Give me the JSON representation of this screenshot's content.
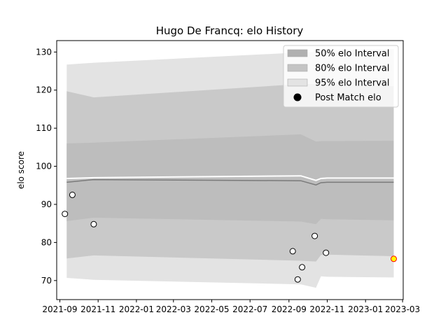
{
  "chart_data": {
    "type": "area",
    "title": "Hugo De Francq: elo History",
    "xlabel": "",
    "ylabel": "elo score",
    "ylim": [
      65,
      133
    ],
    "xlim": [
      "2021-08-27",
      "2023-03-02"
    ],
    "x_ticks": [
      "2021-09",
      "2021-11",
      "2022-01",
      "2022-03",
      "2022-05",
      "2022-07",
      "2022-09",
      "2022-11",
      "2023-01",
      "2023-03"
    ],
    "y_ticks": [
      70,
      80,
      90,
      100,
      110,
      120,
      130
    ],
    "grid": false,
    "legend_position": "top-right",
    "legend": [
      {
        "label": "50% elo Interval",
        "color": "#b0b0b0",
        "kind": "patch"
      },
      {
        "label": "80% elo Interval",
        "color": "#c4c4c4",
        "kind": "patch"
      },
      {
        "label": "95% elo Interval",
        "color": "#e3e3e3",
        "kind": "patch"
      },
      {
        "label": "Post Match elo",
        "color": "#000000",
        "kind": "marker"
      }
    ],
    "dates": [
      "2021-09-12",
      "2021-10-25",
      "2022-09-20",
      "2022-10-14",
      "2022-10-22",
      "2022-11-01",
      "2023-02-15"
    ],
    "bands": {
      "ci95": {
        "lower": [
          70.7,
          70.2,
          69.0,
          68.1,
          71.1,
          71.0,
          70.8
        ],
        "upper": [
          126.7,
          127.2,
          129.9,
          130.0,
          130.4,
          130.4,
          130.8
        ],
        "color": "#e3e3e3"
      },
      "ci80": {
        "lower": [
          75.8,
          76.6,
          75.2,
          75.0,
          76.7,
          76.8,
          76.4
        ],
        "upper": [
          119.7,
          118.1,
          121.6,
          121.6,
          121.5,
          121.5,
          121.0
        ],
        "color": "#c9c9c9"
      },
      "ci50": {
        "lower": [
          85.6,
          86.5,
          85.5,
          84.8,
          86.2,
          86.1,
          85.8
        ],
        "upper": [
          106.0,
          106.2,
          108.4,
          106.5,
          106.6,
          106.6,
          106.7
        ],
        "color": "#bdbdbd"
      }
    },
    "mean_line": {
      "values": [
        95.8,
        96.5,
        96.2,
        95.1,
        95.7,
        95.8,
        95.8
      ],
      "color": "#7a7a7a"
    },
    "upper_line": {
      "values": [
        96.8,
        97.0,
        97.5,
        96.3,
        96.8,
        96.9,
        96.9
      ],
      "color": "#ffffff"
    },
    "points": [
      {
        "date": "2021-09-09",
        "elo": 87.5
      },
      {
        "date": "2021-09-21",
        "elo": 92.5
      },
      {
        "date": "2021-10-25",
        "elo": 84.8
      },
      {
        "date": "2022-09-07",
        "elo": 77.7
      },
      {
        "date": "2022-09-15",
        "elo": 70.3
      },
      {
        "date": "2022-09-22",
        "elo": 73.5
      },
      {
        "date": "2022-10-12",
        "elo": 81.7
      },
      {
        "date": "2022-10-30",
        "elo": 77.3
      }
    ],
    "latest_point": {
      "date": "2023-02-15",
      "elo": 75.7,
      "fill": "#ffff00",
      "edge": "#ff0000"
    }
  }
}
